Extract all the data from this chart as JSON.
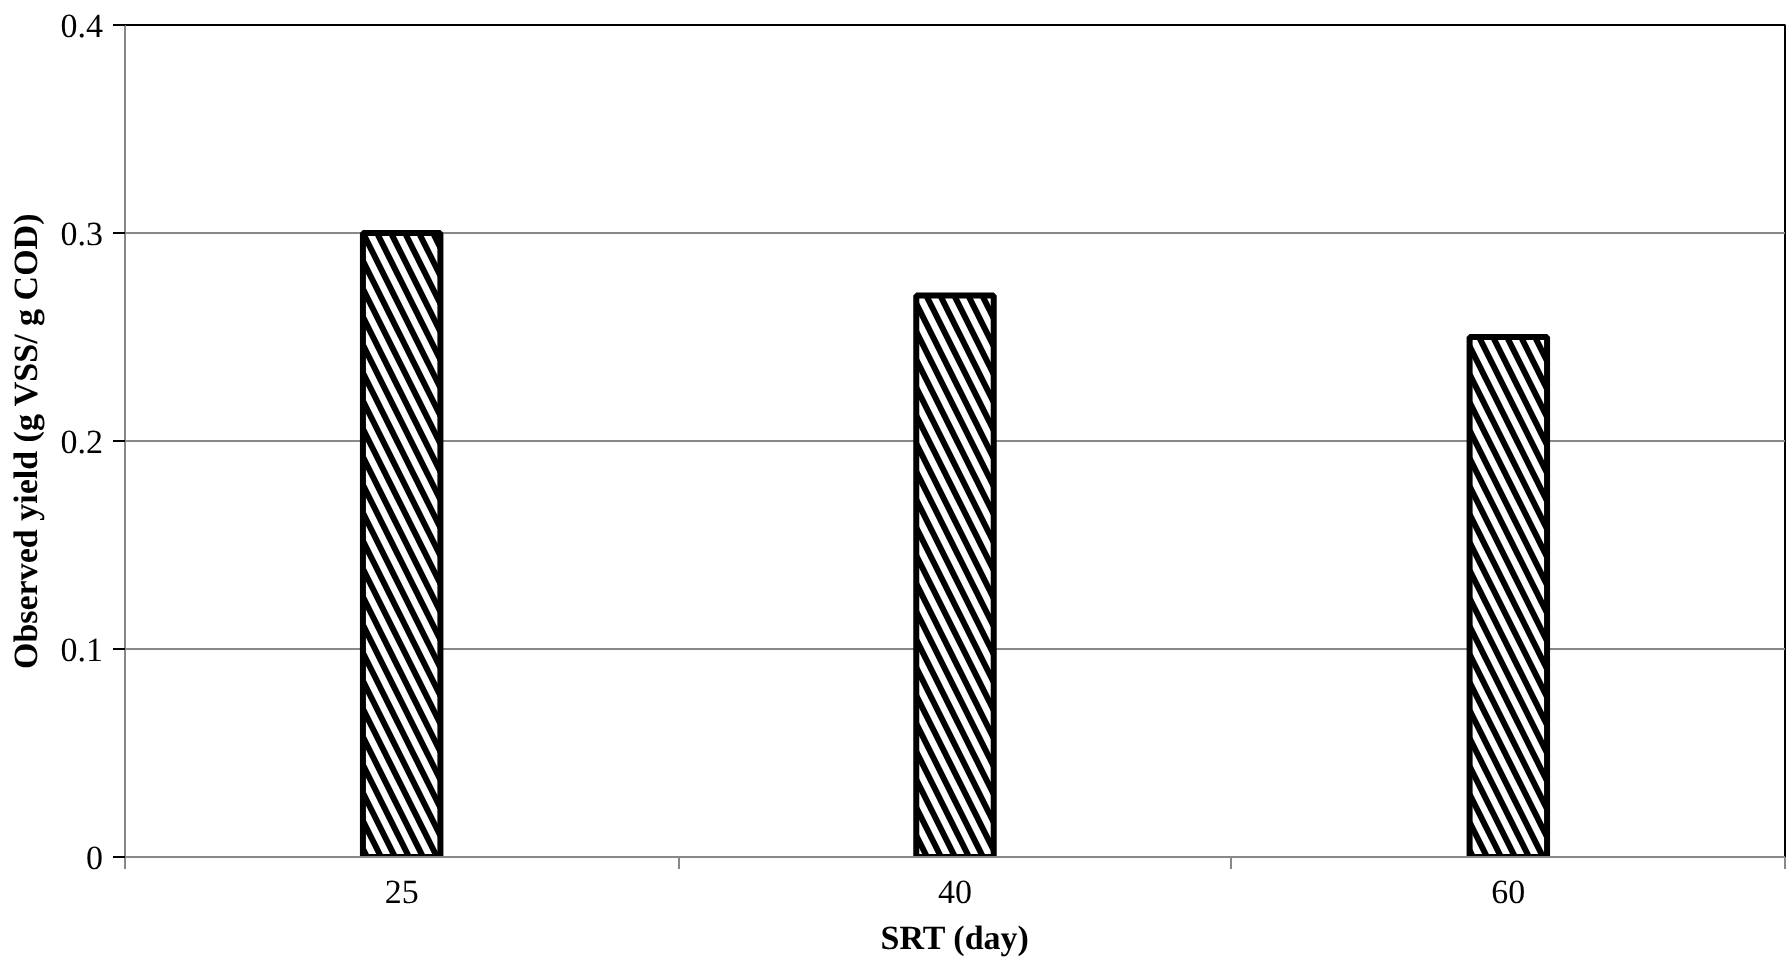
{
  "chart_data": {
    "type": "bar",
    "xlabel": "SRT (day)",
    "ylabel": "Observed yield (g VSS/ g COD)",
    "categories": [
      "25",
      "40",
      "60"
    ],
    "values": [
      0.3,
      0.27,
      0.25
    ],
    "color": "#000000",
    "ylim": [
      0,
      0.4
    ],
    "yticks": [
      {
        "value": 0,
        "label": "0"
      },
      0.1,
      0.2,
      0.3,
      0.4
    ],
    "grid": "y"
  }
}
